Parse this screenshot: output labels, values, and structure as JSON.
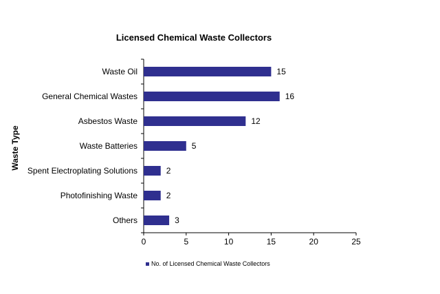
{
  "colors": {
    "bar": "#2f2f8f",
    "axis": "#000000"
  },
  "chart_data": {
    "type": "bar",
    "orientation": "horizontal",
    "title": "Licensed  Chemical Waste Collectors",
    "ylabel": "Waste Type",
    "xlabel": "",
    "categories": [
      "Waste Oil",
      "General Chemical Wastes",
      "Asbestos Waste",
      "Waste Batteries",
      "Spent Electroplating Solutions",
      "Photofinishing Waste",
      "Others"
    ],
    "series": [
      {
        "name": "No. of Licensed Chemical Waste Collectors",
        "values": [
          15,
          16,
          12,
          5,
          2,
          2,
          3
        ]
      }
    ],
    "xlim": [
      0,
      25
    ],
    "xticks": [
      "0",
      "5",
      "10",
      "15",
      "20",
      "25"
    ],
    "grid": false,
    "legend_position": "bottom"
  }
}
